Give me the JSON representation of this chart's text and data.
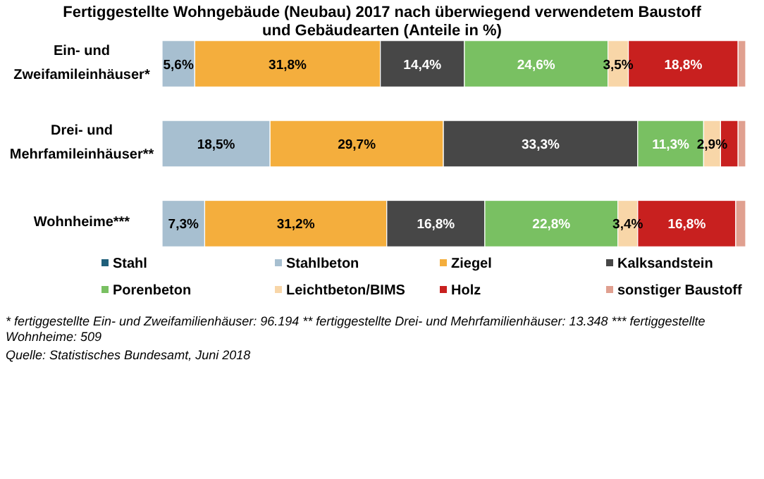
{
  "chart_data": {
    "type": "bar",
    "orientation": "horizontal",
    "stacked": true,
    "title": "Fertiggestellte Wohngebäude (Neubau) 2017 nach überwiegend verwendetem Baustoff und Gebäudearten (Anteile in %)",
    "categories": [
      "Ein- und Zweifamileinhäuser*",
      "Drei- und Mehrfamileinhäuser**",
      "Wohnheime***"
    ],
    "series": [
      {
        "name": "Stahl",
        "color": "#1f5f7a",
        "values": [
          null,
          null,
          null
        ]
      },
      {
        "name": "Stahlbeton",
        "color": "#a7bfd0",
        "values": [
          5.6,
          18.5,
          7.3
        ],
        "value_labels": [
          "5,6%",
          "18,5%",
          "7,3%"
        ]
      },
      {
        "name": "Ziegel",
        "color": "#f4ae3d",
        "values": [
          31.8,
          29.7,
          31.2
        ],
        "value_labels": [
          "31,8%",
          "29,7%",
          "31,2%"
        ]
      },
      {
        "name": "Kalksandstein",
        "color": "#474747",
        "values": [
          14.4,
          33.3,
          16.8
        ],
        "value_labels": [
          "14,4%",
          "33,3%",
          "16,8%"
        ]
      },
      {
        "name": "Porenbeton",
        "color": "#79c062",
        "values": [
          24.6,
          11.3,
          22.8
        ],
        "value_labels": [
          "24,6%",
          "11,3%",
          "22,8%"
        ]
      },
      {
        "name": "Leichtbeton/BIMS",
        "color": "#f8d6a8",
        "values": [
          3.5,
          2.9,
          3.4
        ],
        "value_labels": [
          "3,5%",
          "2,9%",
          "3,4%"
        ]
      },
      {
        "name": "Holz",
        "color": "#c8201f",
        "values": [
          18.8,
          3.0,
          16.8
        ],
        "value_labels": [
          "18,8%",
          null,
          "16,8%"
        ]
      },
      {
        "name": "sonstiger Baustoff",
        "color": "#e0a090",
        "values": [
          1.3,
          1.3,
          1.7
        ]
      }
    ],
    "xlim": [
      0,
      100
    ],
    "tick_labels": false,
    "legend": "bottom",
    "annotations": [
      "* fertiggestellte Ein- und Zweifamilienhäuser:  96.194 ** fertiggestellte Drei- und Mehrfamilienhäuser: 13.348 *** fertiggestellte Wohnheime: 509",
      "Quelle: Statistisches Bundesamt, Juni 2018"
    ]
  }
}
